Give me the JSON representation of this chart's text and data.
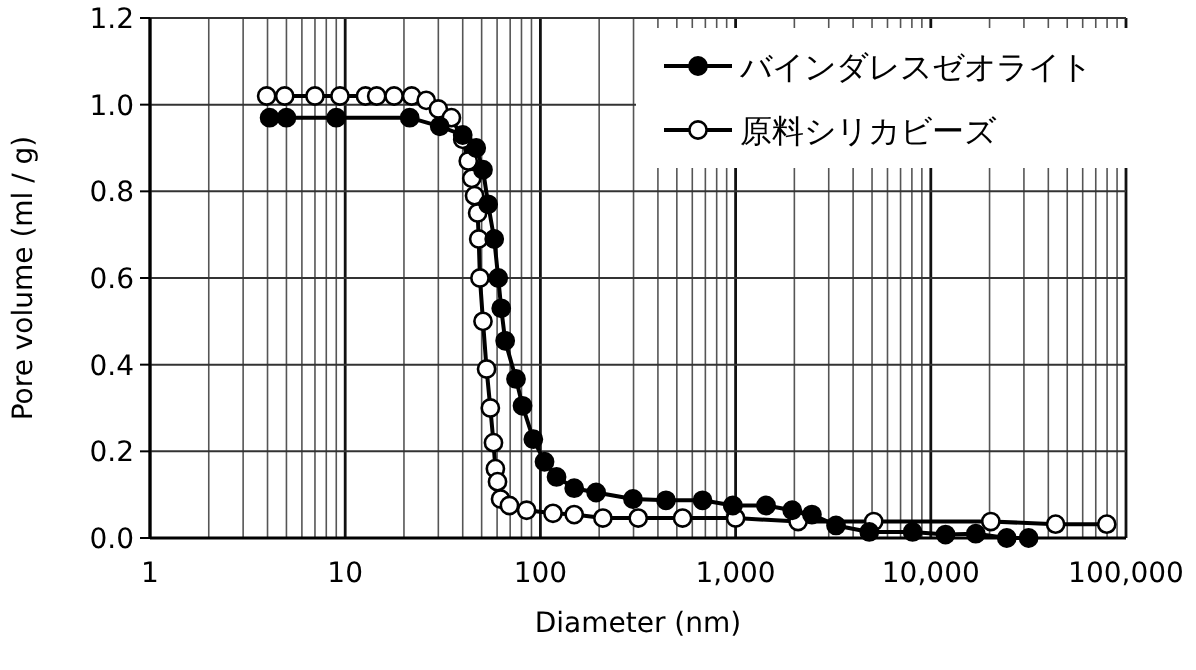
{
  "chart_data": {
    "type": "line",
    "xlabel": "Diameter (nm)",
    "ylabel": "Pore volume (ml / g)",
    "log": "x",
    "grid": true,
    "legend": "top right",
    "marker": "circle",
    "line_style": "solid",
    "xlim": [
      1,
      100000
    ],
    "ylim": [
      0,
      1.2
    ],
    "xticks": [
      1,
      10,
      100,
      {
        "value": 1000,
        "label": "1,000"
      },
      {
        "value": 10000,
        "label": "10,000"
      },
      {
        "value": 100000,
        "label": "100,000"
      }
    ],
    "yticks": [
      {
        "value": 0,
        "label": "0.0"
      },
      {
        "value": 0.2,
        "label": "0.2"
      },
      {
        "value": 0.4,
        "label": "0.4"
      },
      {
        "value": 0.6,
        "label": "0.6"
      },
      {
        "value": 0.8,
        "label": "0.8"
      },
      {
        "value": 1.0,
        "label": "1.0"
      },
      {
        "value": 1.2,
        "label": "1.2"
      }
    ],
    "series": [
      {
        "name": "バインダレスゼオライト",
        "color": "#000000",
        "x": [
          4.1,
          5.0,
          9.0,
          21.4,
          30.5,
          40,
          46.9,
          50.8,
          54,
          58,
          60.8,
          63,
          66,
          75,
          81,
          92,
          105,
          121,
          149,
          193,
          298,
          440,
          677,
          968,
          1432,
          1950,
          2460,
          3270,
          4840,
          8070,
          11900,
          17000,
          24500,
          31700
        ],
        "values": [
          0.97,
          0.97,
          0.97,
          0.97,
          0.95,
          0.93,
          0.9,
          0.85,
          0.77,
          0.69,
          0.6,
          0.53,
          0.455,
          0.367,
          0.305,
          0.228,
          0.176,
          0.141,
          0.115,
          0.105,
          0.09,
          0.087,
          0.087,
          0.075,
          0.075,
          0.064,
          0.054,
          0.029,
          0.014,
          0.014,
          0.008,
          0.01,
          0.0,
          0.0
        ]
      },
      {
        "name": "原料シリカビーズ",
        "color": "#000000",
        "x": [
          3.96,
          4.9,
          7.0,
          9.4,
          12.7,
          14.5,
          17.8,
          21.9,
          26,
          30,
          35,
          40,
          42.7,
          44.5,
          46,
          47.7,
          48.3,
          49,
          50.8,
          53,
          55.4,
          57.5,
          58.8,
          60.3,
          62.5,
          69.4,
          85,
          116,
          149,
          209,
          317,
          535,
          1000,
          2090,
          5100,
          20300,
          43600,
          79700
        ],
        "values": [
          1.02,
          1.02,
          1.02,
          1.02,
          1.02,
          1.02,
          1.02,
          1.02,
          1.01,
          0.99,
          0.97,
          0.92,
          0.87,
          0.83,
          0.79,
          0.75,
          0.69,
          0.6,
          0.5,
          0.39,
          0.3,
          0.22,
          0.16,
          0.13,
          0.09,
          0.075,
          0.064,
          0.057,
          0.054,
          0.046,
          0.046,
          0.046,
          0.046,
          0.038,
          0.038,
          0.038,
          0.032,
          0.032
        ]
      }
    ]
  }
}
